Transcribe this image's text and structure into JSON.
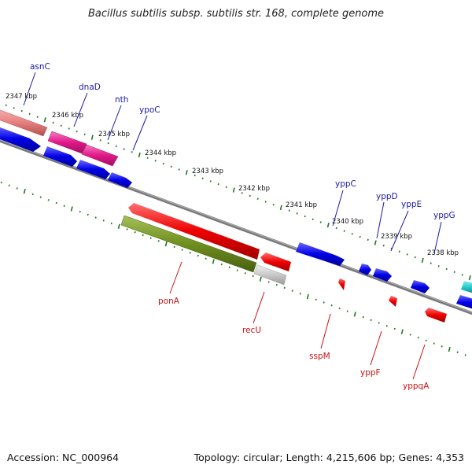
{
  "title": "Bacillus subtilis subsp. subtilis str. 168, complete genome",
  "footer": {
    "accession": "Accession: NC_000964",
    "summary": "Topology: circular; Length: 4,215,606 bp; Genes: 4,353"
  },
  "colors": {
    "forward_gene": "#0000e6",
    "reverse_gene": "#ee0000",
    "forward_label": "#1a1aa6",
    "reverse_label": "#cc1111",
    "pink_gene": "#e2188a",
    "salmon_gene": "#e88080",
    "olive_gene": "#6f8f1e",
    "grey_gene": "#c8c8c8",
    "cyan_gene": "#20c8c8",
    "backbone": "#808080",
    "tick": "#1f7a1f"
  },
  "scale": {
    "labels": [
      "2347 kbp",
      "2346 kbp",
      "2345 kbp",
      "2344 kbp",
      "2343 kbp",
      "2342 kbp",
      "2341 kbp",
      "2340 kbp",
      "2339 kbp",
      "2338 kbp"
    ]
  },
  "genes": {
    "forward": [
      "asnC",
      "dnaD",
      "nth",
      "ypoC",
      "yppC",
      "yppD",
      "yppE",
      "yppG"
    ],
    "reverse": [
      "ponA",
      "recU",
      "sspM",
      "yppF",
      "yppqA"
    ]
  }
}
